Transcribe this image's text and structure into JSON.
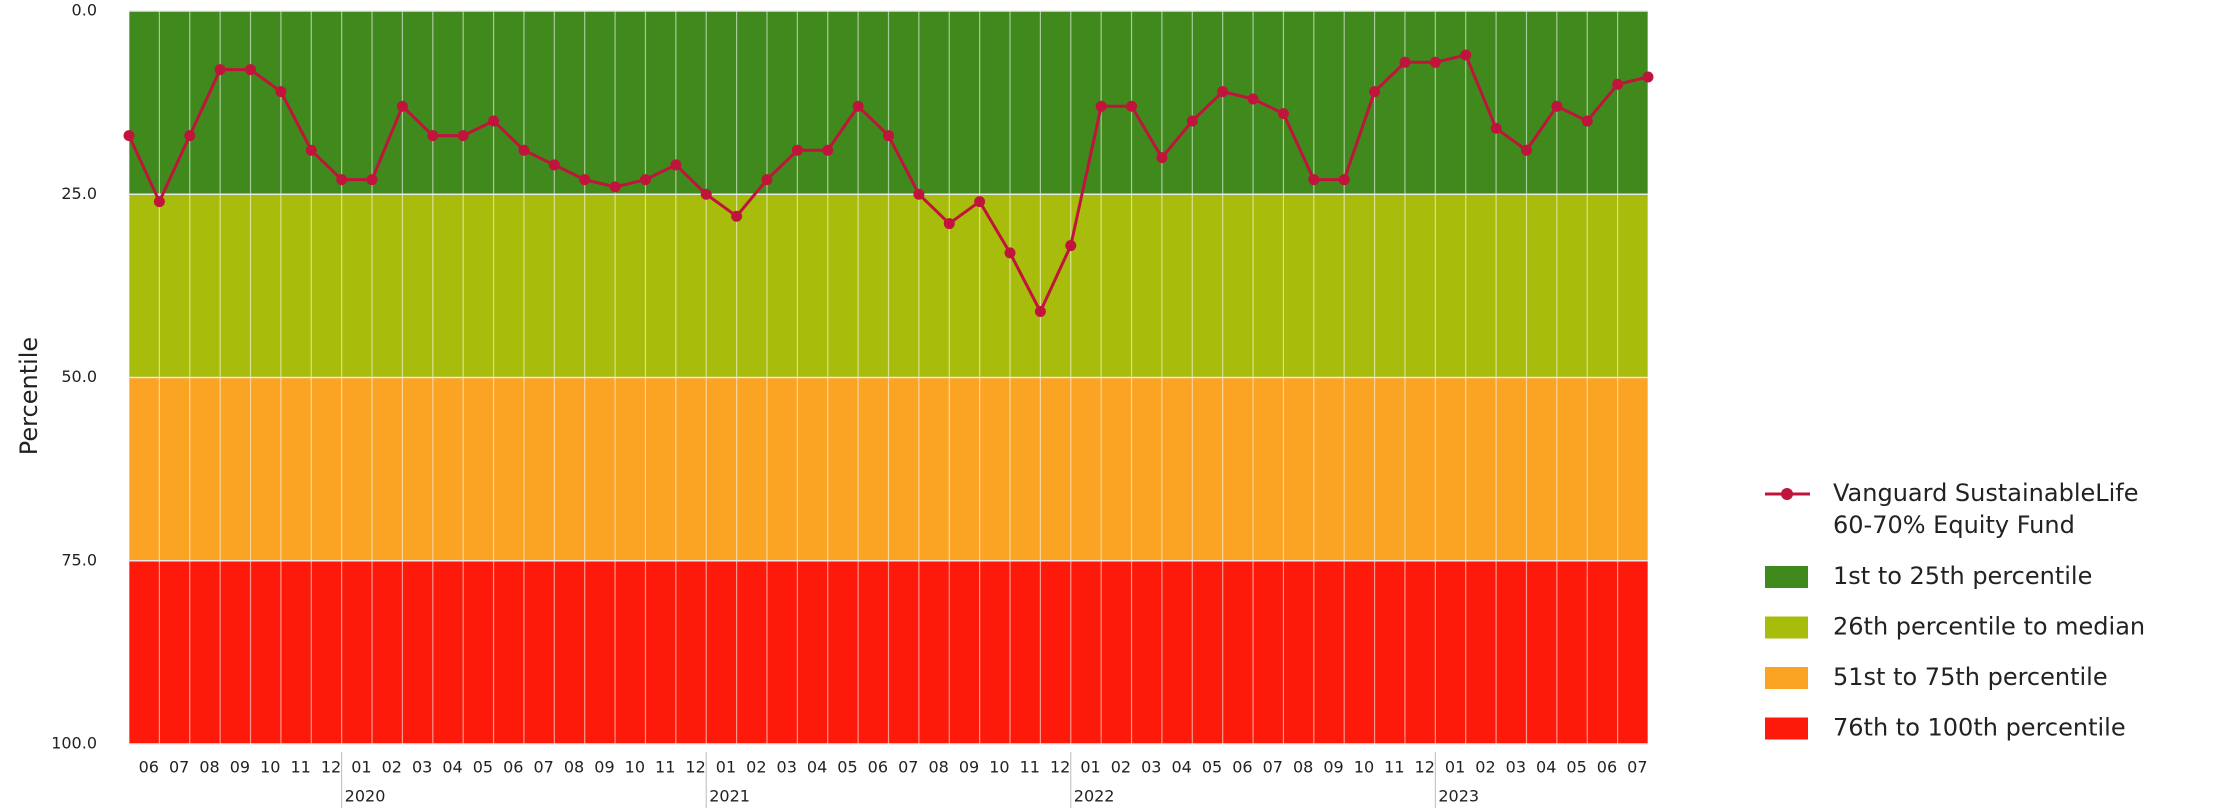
{
  "chart_data": {
    "type": "line",
    "y_label": "Percentile",
    "ylim": [
      0,
      100
    ],
    "y_inverted": true,
    "yticks": [
      {
        "value": 0,
        "label": "0.0"
      },
      {
        "value": 25,
        "label": "25.0"
      },
      {
        "value": 50,
        "label": "50.0"
      },
      {
        "value": 75,
        "label": "75.0"
      },
      {
        "value": 100,
        "label": "100.0"
      }
    ],
    "categories": [
      null,
      "06",
      "07",
      "08",
      "09",
      "10",
      "11",
      "12",
      "01",
      "02",
      "03",
      "04",
      "05",
      "06",
      "07",
      "08",
      "09",
      "10",
      "11",
      "12",
      "01",
      "02",
      "03",
      "04",
      "05",
      "06",
      "07",
      "08",
      "09",
      "10",
      "11",
      "12",
      "01",
      "02",
      "03",
      "04",
      "05",
      "06",
      "07",
      "08",
      "09",
      "10",
      "11",
      "12",
      "01",
      "02",
      "03",
      "04",
      "05",
      "06",
      "07"
    ],
    "years": [
      "2020",
      "2021",
      "2022",
      "2023"
    ],
    "bands": [
      {
        "name": "1st to 25th percentile",
        "color": "#3f891d",
        "range": [
          0,
          25
        ]
      },
      {
        "name": "26th percentile to median",
        "color": "#a8bd0b",
        "range": [
          25,
          50
        ]
      },
      {
        "name": "51st to 75th percentile",
        "color": "#fba323",
        "range": [
          50,
          75
        ]
      },
      {
        "name": "76th to 100th percentile",
        "color": "#fe1a0a",
        "range": [
          75,
          100
        ]
      }
    ],
    "series": [
      {
        "name": "Vanguard SustainableLife 60-70% Equity Fund",
        "color": "#c0143c",
        "values": [
          17,
          26,
          17,
          8,
          8,
          11,
          19,
          23,
          23,
          13,
          17,
          17,
          15,
          19,
          21,
          23,
          24,
          23,
          21,
          25,
          28,
          23,
          19,
          19,
          13,
          17,
          25,
          29,
          26,
          33,
          41,
          32,
          13,
          13,
          20,
          15,
          11,
          12,
          14,
          23,
          23,
          11,
          7,
          7,
          6,
          16,
          19,
          13,
          15,
          10,
          9
        ]
      }
    ]
  }
}
